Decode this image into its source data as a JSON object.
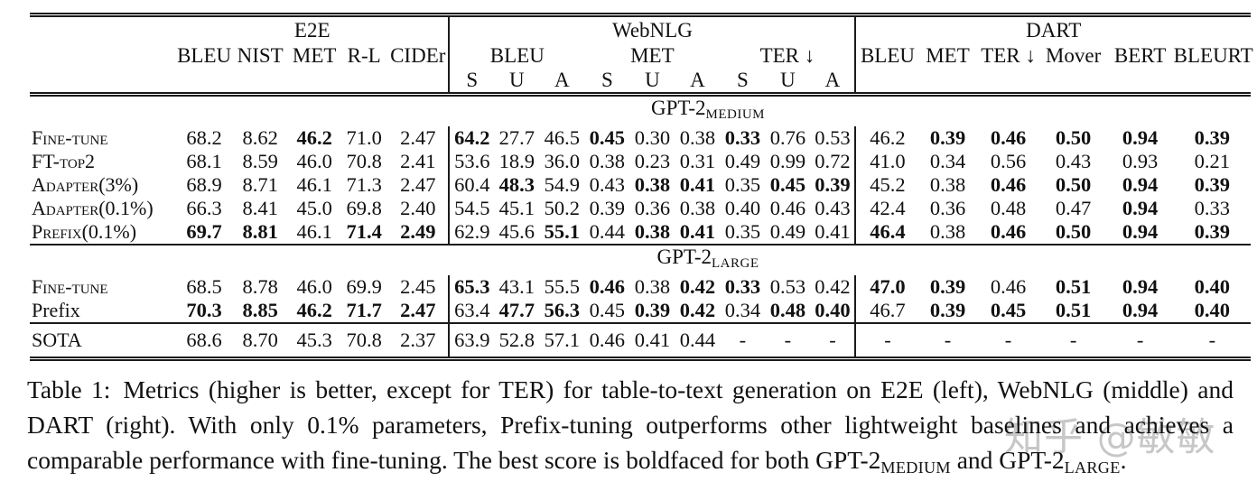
{
  "watermark": {
    "text": "知乎 @敏敏",
    "color": "#c7c7c7"
  },
  "table": {
    "groups": {
      "e2e": {
        "name": "E2E",
        "cols": [
          "BLEU",
          "NIST",
          "MET",
          "R-L",
          "CIDEr"
        ]
      },
      "webnlg": {
        "name": "WebNLG",
        "metric_groups": [
          "BLEU",
          "MET",
          "TER ↓"
        ],
        "subcols": [
          "S",
          "U",
          "A",
          "S",
          "U",
          "A",
          "S",
          "U",
          "A"
        ]
      },
      "dart": {
        "name": "DART",
        "cols": [
          "BLEU",
          "MET",
          "TER ↓",
          "Mover",
          "BERT",
          "BLEURT"
        ]
      }
    },
    "sections": [
      {
        "label_base": "GPT-2",
        "label_sub": "MEDIUM",
        "rows": [
          {
            "label": "Fine-tune",
            "sc": true,
            "cells": [
              [
                "68.2",
                0
              ],
              [
                "8.62",
                0
              ],
              [
                "46.2",
                1
              ],
              [
                "71.0",
                0
              ],
              [
                "2.47",
                0
              ],
              [
                "64.2",
                1
              ],
              [
                "27.7",
                0
              ],
              [
                "46.5",
                0
              ],
              [
                "0.45",
                1
              ],
              [
                "0.30",
                0
              ],
              [
                "0.38",
                0
              ],
              [
                "0.33",
                1
              ],
              [
                "0.76",
                0
              ],
              [
                "0.53",
                0
              ],
              [
                "46.2",
                0
              ],
              [
                "0.39",
                1
              ],
              [
                "0.46",
                1
              ],
              [
                "0.50",
                1
              ],
              [
                "0.94",
                1
              ],
              [
                "0.39",
                1
              ]
            ]
          },
          {
            "label": "FT-top2",
            "sc": true,
            "cells": [
              [
                "68.1",
                0
              ],
              [
                "8.59",
                0
              ],
              [
                "46.0",
                0
              ],
              [
                "70.8",
                0
              ],
              [
                "2.41",
                0
              ],
              [
                "53.6",
                0
              ],
              [
                "18.9",
                0
              ],
              [
                "36.0",
                0
              ],
              [
                "0.38",
                0
              ],
              [
                "0.23",
                0
              ],
              [
                "0.31",
                0
              ],
              [
                "0.49",
                0
              ],
              [
                "0.99",
                0
              ],
              [
                "0.72",
                0
              ],
              [
                "41.0",
                0
              ],
              [
                "0.34",
                0
              ],
              [
                "0.56",
                0
              ],
              [
                "0.43",
                0
              ],
              [
                "0.93",
                0
              ],
              [
                "0.21",
                0
              ]
            ]
          },
          {
            "label": "Adapter(3%)",
            "sc": true,
            "cells": [
              [
                "68.9",
                0
              ],
              [
                "8.71",
                0
              ],
              [
                "46.1",
                0
              ],
              [
                "71.3",
                0
              ],
              [
                "2.47",
                0
              ],
              [
                "60.4",
                0
              ],
              [
                "48.3",
                1
              ],
              [
                "54.9",
                0
              ],
              [
                "0.43",
                0
              ],
              [
                "0.38",
                1
              ],
              [
                "0.41",
                1
              ],
              [
                "0.35",
                0
              ],
              [
                "0.45",
                1
              ],
              [
                "0.39",
                1
              ],
              [
                "45.2",
                0
              ],
              [
                "0.38",
                0
              ],
              [
                "0.46",
                1
              ],
              [
                "0.50",
                1
              ],
              [
                "0.94",
                1
              ],
              [
                "0.39",
                1
              ]
            ]
          },
          {
            "label": "Adapter(0.1%)",
            "sc": true,
            "cells": [
              [
                "66.3",
                0
              ],
              [
                "8.41",
                0
              ],
              [
                "45.0",
                0
              ],
              [
                "69.8",
                0
              ],
              [
                "2.40",
                0
              ],
              [
                "54.5",
                0
              ],
              [
                "45.1",
                0
              ],
              [
                "50.2",
                0
              ],
              [
                "0.39",
                0
              ],
              [
                "0.36",
                0
              ],
              [
                "0.38",
                0
              ],
              [
                "0.40",
                0
              ],
              [
                "0.46",
                0
              ],
              [
                "0.43",
                0
              ],
              [
                "42.4",
                0
              ],
              [
                "0.36",
                0
              ],
              [
                "0.48",
                0
              ],
              [
                "0.47",
                0
              ],
              [
                "0.94",
                1
              ],
              [
                "0.33",
                0
              ]
            ]
          },
          {
            "label": "Prefix(0.1%)",
            "sc": true,
            "cells": [
              [
                "69.7",
                1
              ],
              [
                "8.81",
                1
              ],
              [
                "46.1",
                0
              ],
              [
                "71.4",
                1
              ],
              [
                "2.49",
                1
              ],
              [
                "62.9",
                0
              ],
              [
                "45.6",
                0
              ],
              [
                "55.1",
                1
              ],
              [
                "0.44",
                0
              ],
              [
                "0.38",
                1
              ],
              [
                "0.41",
                1
              ],
              [
                "0.35",
                0
              ],
              [
                "0.49",
                0
              ],
              [
                "0.41",
                0
              ],
              [
                "46.4",
                1
              ],
              [
                "0.38",
                0
              ],
              [
                "0.46",
                1
              ],
              [
                "0.50",
                1
              ],
              [
                "0.94",
                1
              ],
              [
                "0.39",
                1
              ]
            ]
          }
        ]
      },
      {
        "label_base": "GPT-2",
        "label_sub": "LARGE",
        "rows": [
          {
            "label": "Fine-tune",
            "sc": true,
            "cells": [
              [
                "68.5",
                0
              ],
              [
                "8.78",
                0
              ],
              [
                "46.0",
                0
              ],
              [
                "69.9",
                0
              ],
              [
                "2.45",
                0
              ],
              [
                "65.3",
                1
              ],
              [
                "43.1",
                0
              ],
              [
                "55.5",
                0
              ],
              [
                "0.46",
                1
              ],
              [
                "0.38",
                0
              ],
              [
                "0.42",
                1
              ],
              [
                "0.33",
                1
              ],
              [
                "0.53",
                0
              ],
              [
                "0.42",
                0
              ],
              [
                "47.0",
                1
              ],
              [
                "0.39",
                1
              ],
              [
                "0.46",
                0
              ],
              [
                "0.51",
                1
              ],
              [
                "0.94",
                1
              ],
              [
                "0.40",
                1
              ]
            ]
          },
          {
            "label": "Prefix",
            "sc": false,
            "cells": [
              [
                "70.3",
                1
              ],
              [
                "8.85",
                1
              ],
              [
                "46.2",
                1
              ],
              [
                "71.7",
                1
              ],
              [
                "2.47",
                1
              ],
              [
                "63.4",
                0
              ],
              [
                "47.7",
                1
              ],
              [
                "56.3",
                1
              ],
              [
                "0.45",
                0
              ],
              [
                "0.39",
                1
              ],
              [
                "0.42",
                1
              ],
              [
                "0.34",
                0
              ],
              [
                "0.48",
                1
              ],
              [
                "0.40",
                1
              ],
              [
                "46.7",
                0
              ],
              [
                "0.39",
                1
              ],
              [
                "0.45",
                1
              ],
              [
                "0.51",
                1
              ],
              [
                "0.94",
                1
              ],
              [
                "0.40",
                1
              ]
            ]
          }
        ]
      },
      {
        "label_base": null,
        "label_sub": null,
        "rows": [
          {
            "label": "SOTA",
            "sc": false,
            "cells": [
              [
                "68.6",
                0
              ],
              [
                "8.70",
                0
              ],
              [
                "45.3",
                0
              ],
              [
                "70.8",
                0
              ],
              [
                "2.37",
                0
              ],
              [
                "63.9",
                0
              ],
              [
                "52.8",
                0
              ],
              [
                "57.1",
                0
              ],
              [
                "0.46",
                0
              ],
              [
                "0.41",
                0
              ],
              [
                "0.44",
                0
              ],
              [
                "-",
                0
              ],
              [
                "-",
                0
              ],
              [
                "-",
                0
              ],
              [
                "-",
                0
              ],
              [
                "-",
                0
              ],
              [
                "-",
                0
              ],
              [
                "-",
                0
              ],
              [
                "-",
                0
              ],
              [
                "-",
                0
              ]
            ]
          }
        ]
      }
    ]
  },
  "caption": {
    "tag": "Table 1:",
    "body": "Metrics (higher is better, except for TER) for table-to-text generation on E2E (left), WebNLG (middle) and DART (right). With only 0.1% parameters, Prefix-tuning outperforms other lightweight baselines and achieves a comparable performance with fine-tuning. The best score is boldfaced for both ",
    "gpt2_medium": {
      "base": "GPT-2",
      "sub": "MEDIUM"
    },
    "and_text": " and ",
    "gpt2_large": {
      "base": "GPT-2",
      "sub": "LARGE"
    },
    "period": "."
  }
}
